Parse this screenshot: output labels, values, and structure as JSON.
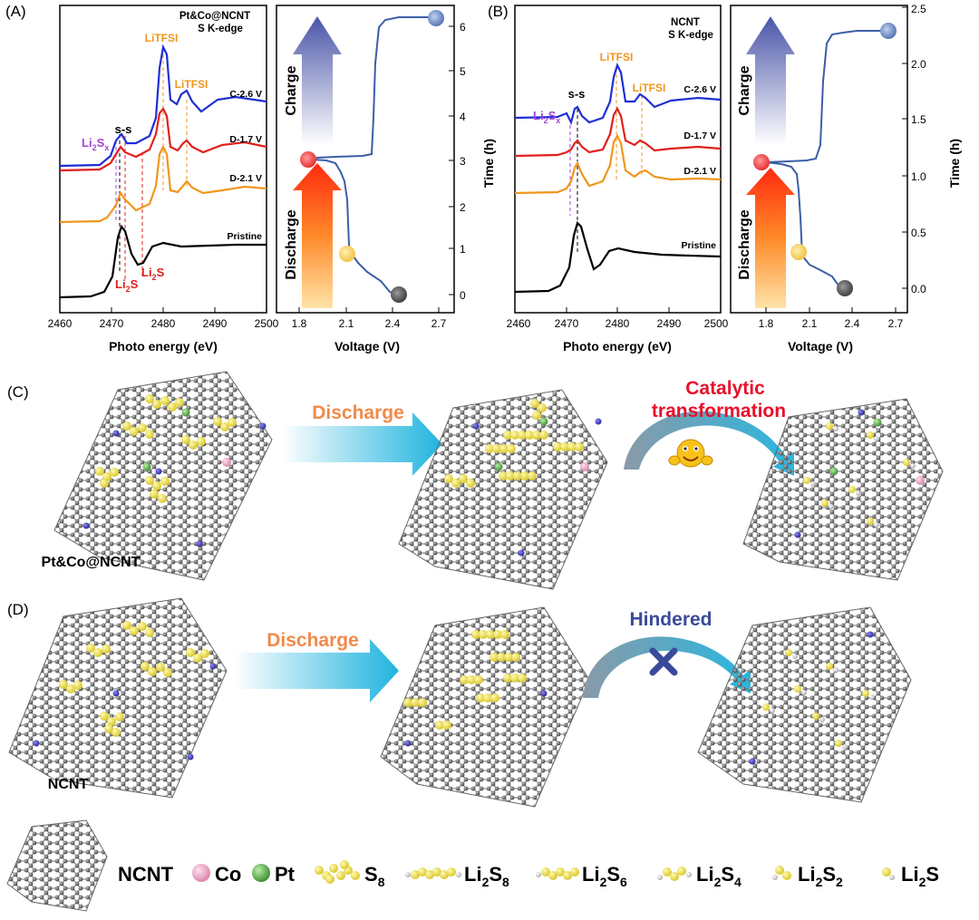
{
  "panels": {
    "A": {
      "tag": "(A)",
      "title": "Pt&Co@NCNT",
      "subtitle": "S K-edge",
      "xlabel": "Photo energy (eV)",
      "xticks": [
        "2460",
        "2470",
        "2480",
        "2490",
        "2500"
      ],
      "curve_labels": [
        "C-2.6 V",
        "D-1.7 V",
        "D-2.1 V",
        "Pristine"
      ],
      "ann_litfsi": "LiTFSI",
      "ann_ss": "s-s",
      "ann_li2sx": {
        "main": "Li",
        "s1": "2",
        "mid": "S",
        "s2": "x"
      },
      "ann_li2s": {
        "main": "Li",
        "s1": "2",
        "mid": "S"
      },
      "gcd": {
        "charge_label": "Charge",
        "discharge_label": "Discharge",
        "xlabel": "Voltage (V)",
        "ylabel": "Time (h)",
        "xticks": [
          "1.8",
          "2.1",
          "2.4",
          "2.7"
        ],
        "yticks": [
          "0",
          "1",
          "2",
          "3",
          "4",
          "5",
          "6"
        ]
      }
    },
    "B": {
      "tag": "(B)",
      "title": "NCNT",
      "subtitle": "S K-edge",
      "xlabel": "Photo energy (eV)",
      "xticks": [
        "2460",
        "2470",
        "2480",
        "2490",
        "2500"
      ],
      "curve_labels": [
        "C-2.6 V",
        "D-1.7 V",
        "D-2.1 V",
        "Pristine"
      ],
      "ann_litfsi": "LiTFSI",
      "ann_ss": "s-s",
      "ann_li2sx": {
        "main": "Li",
        "s1": "2",
        "mid": "S",
        "s2": "x"
      },
      "gcd": {
        "charge_label": "Charge",
        "discharge_label": "Discharge",
        "xlabel": "Voltage (V)",
        "ylabel": "Time (h)",
        "xticks": [
          "1.8",
          "2.1",
          "2.4",
          "2.7"
        ],
        "yticks": [
          "0.0",
          "0.5",
          "1.0",
          "1.5",
          "2.0",
          "2.5"
        ]
      }
    },
    "C": {
      "tag": "(C)",
      "arrow_label": "Discharge",
      "catalytic_line1": "Catalytic",
      "catalytic_line2": "transformation",
      "tube_label": "Pt&Co@NCNT"
    },
    "D": {
      "tag": "(D)",
      "arrow_label": "Discharge",
      "hindered_label": "Hindered",
      "tube_label": "NCNT"
    }
  },
  "legend": {
    "ncnt": "NCNT",
    "co": "Co",
    "pt": "Pt",
    "s8": {
      "main": "S",
      "sub": "8"
    },
    "li2s8": {
      "main": "Li",
      "s1": "2",
      "mid": "S",
      "s2": "8"
    },
    "li2s6": {
      "main": "Li",
      "s1": "2",
      "mid": "S",
      "s2": "6"
    },
    "li2s4": {
      "main": "Li",
      "s1": "2",
      "mid": "S",
      "s2": "4"
    },
    "li2s2": {
      "main": "Li",
      "s1": "2",
      "mid": "S",
      "s2": "2"
    },
    "li2s": {
      "main": "Li",
      "s1": "2",
      "mid": "S"
    }
  },
  "colors": {
    "charge_arrow": "#4a55a8",
    "discharge_arrow": "#ff2a0e",
    "gcd_line": "#3b5ea8",
    "c26_curve": "#1f2fd6",
    "d17_curve": "#e0201c",
    "d21_curve": "#f0961e",
    "pristine_curve": "#000000",
    "litfsi": "#f0961e",
    "li2sx": "#a545d6",
    "li2s": "#e0201c",
    "catalytic": "#e8102a",
    "discharge_label": "#f08a4b",
    "hindered": "#3a4a9a",
    "flow_arrow": "#1fb4de",
    "sulfur": "#f0e24a",
    "carbon": "#555555",
    "nitrogen": "#3a34b8",
    "co": "#f2a9c8",
    "pt": "#5fb04f",
    "li": "#e6e6e6"
  }
}
